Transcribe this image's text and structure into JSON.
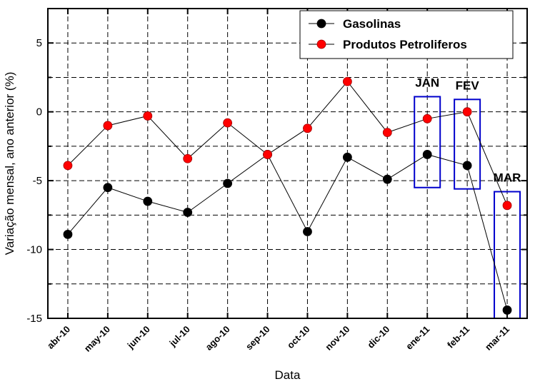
{
  "chart_data": {
    "type": "line",
    "categories": [
      "abr-10",
      "may-10",
      "jun-10",
      "jul-10",
      "ago-10",
      "sep-10",
      "oct-10",
      "nov-10",
      "dic-10",
      "ene-11",
      "feb-11",
      "mar-11"
    ],
    "series": [
      {
        "name": "Gasolinas",
        "color": "#000000",
        "values": [
          -8.9,
          -5.5,
          -6.5,
          -7.3,
          -5.2,
          -3.1,
          -8.7,
          -3.3,
          -4.9,
          -3.1,
          -3.9,
          -14.4
        ]
      },
      {
        "name": "Produtos Petroliferos",
        "color": "#ff0000",
        "values": [
          -3.9,
          -1.0,
          -0.3,
          -3.4,
          -0.8,
          -3.1,
          -1.2,
          2.2,
          -1.5,
          -0.5,
          0.0,
          -6.8
        ]
      }
    ],
    "xlabel": "Data",
    "ylabel": "Variação mensal, ano anterior (%)",
    "ylim": [
      -15,
      7.5
    ],
    "yticks": [
      -15,
      -10,
      -5,
      0,
      5
    ],
    "grid": true,
    "legend_position": "top-right",
    "annotations": [
      {
        "label": "JAN",
        "category": "ene-11",
        "ymin": -5.5,
        "ymax": 1.1,
        "color": "#0000cc"
      },
      {
        "label": "FEV",
        "category": "feb-11",
        "ymin": -5.6,
        "ymax": 0.9,
        "color": "#0000cc"
      },
      {
        "label": "MAR",
        "category": "mar-11",
        "ymin": -15,
        "ymax": -5.8,
        "color": "#0000cc"
      }
    ]
  }
}
